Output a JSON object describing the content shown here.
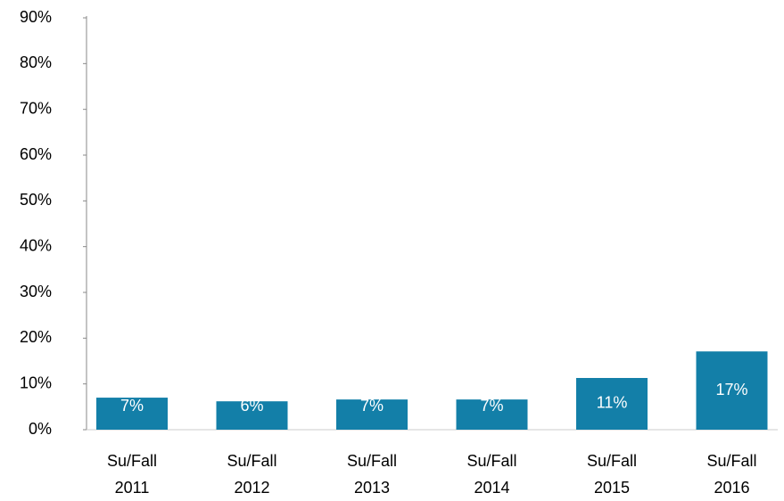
{
  "chart_data": {
    "type": "bar",
    "categories": [
      "Su/Fall 2011",
      "Su/Fall 2012",
      "Su/Fall 2013",
      "Su/Fall 2014",
      "Su/Fall 2015",
      "Su/Fall 2016"
    ],
    "values": [
      7,
      6.2,
      6.6,
      6.6,
      11.3,
      17.1
    ],
    "value_labels": [
      "7%",
      "6%",
      "7%",
      "7%",
      "11%",
      "17%"
    ],
    "color": "#137fa8",
    "ylim": [
      0,
      90
    ],
    "yticks": [
      {
        "value": 0,
        "label": "0%"
      },
      {
        "value": 10,
        "label": "10%"
      },
      {
        "value": 20,
        "label": "20%"
      },
      {
        "value": 30,
        "label": "30%"
      },
      {
        "value": 40,
        "label": "40%"
      },
      {
        "value": 50,
        "label": "50%"
      },
      {
        "value": 60,
        "label": "60%"
      },
      {
        "value": 70,
        "label": "70%"
      },
      {
        "value": 80,
        "label": "80%"
      },
      {
        "value": 90,
        "label": "90%"
      }
    ],
    "grid": false
  }
}
